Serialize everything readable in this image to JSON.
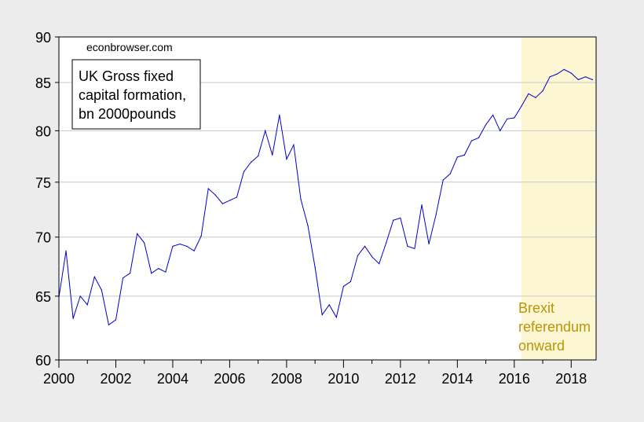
{
  "chart_data": {
    "type": "line",
    "title": "UK Gross fixed capital formation, bn 2000pounds",
    "title_lines": [
      "UK Gross fixed",
      "capital formation,",
      "bn 2000pounds"
    ],
    "watermark": "econbrowser.com",
    "xlabel": "",
    "ylabel": "",
    "scale": "log",
    "ylim": [
      60,
      90
    ],
    "yticks": [
      60,
      65,
      70,
      75,
      80,
      85,
      90
    ],
    "xlim": [
      2000,
      2018.875
    ],
    "xticks": [
      2000,
      2002,
      2004,
      2006,
      2008,
      2010,
      2012,
      2014,
      2016,
      2018
    ],
    "grid": true,
    "shade": {
      "from": 2016.25,
      "to": 2018.875,
      "color": "#fdf6d2"
    },
    "annotation": {
      "lines": [
        "Brexit",
        "referendum",
        "onward"
      ],
      "color": "#b8950a"
    },
    "series": [
      {
        "name": "UK Gross fixed capital formation",
        "color": "#0000cc",
        "x": [
          2000.0,
          2000.25,
          2000.5,
          2000.75,
          2001.0,
          2001.25,
          2001.5,
          2001.75,
          2002.0,
          2002.25,
          2002.5,
          2002.75,
          2003.0,
          2003.25,
          2003.5,
          2003.75,
          2004.0,
          2004.25,
          2004.5,
          2004.75,
          2005.0,
          2005.25,
          2005.5,
          2005.75,
          2006.0,
          2006.25,
          2006.5,
          2006.75,
          2007.0,
          2007.25,
          2007.5,
          2007.75,
          2008.0,
          2008.25,
          2008.5,
          2008.75,
          2009.0,
          2009.25,
          2009.5,
          2009.75,
          2010.0,
          2010.25,
          2010.5,
          2010.75,
          2011.0,
          2011.25,
          2011.5,
          2011.75,
          2012.0,
          2012.25,
          2012.5,
          2012.75,
          2013.0,
          2013.25,
          2013.5,
          2013.75,
          2014.0,
          2014.25,
          2014.5,
          2014.75,
          2015.0,
          2015.25,
          2015.5,
          2015.75,
          2016.0,
          2016.25,
          2016.5,
          2016.75,
          2017.0,
          2017.25,
          2017.5,
          2017.75,
          2018.0,
          2018.25,
          2018.5,
          2018.75
        ],
        "values": [
          64.9,
          68.8,
          63.2,
          65.0,
          64.3,
          66.6,
          65.5,
          62.7,
          63.1,
          66.5,
          66.9,
          70.3,
          69.5,
          66.9,
          67.3,
          67.0,
          69.2,
          69.4,
          69.2,
          68.8,
          70.1,
          74.4,
          73.8,
          73.0,
          73.3,
          73.6,
          76.0,
          76.9,
          77.5,
          80.0,
          77.6,
          81.6,
          77.2,
          78.6,
          73.4,
          71.0,
          67.4,
          63.5,
          64.3,
          63.3,
          65.8,
          66.2,
          68.4,
          69.2,
          68.3,
          67.7,
          69.5,
          71.5,
          71.7,
          69.2,
          69.0,
          72.9,
          69.4,
          72.0,
          75.2,
          75.8,
          77.4,
          77.6,
          79.0,
          79.3,
          80.6,
          81.6,
          80.0,
          81.2,
          81.3,
          82.5,
          83.8,
          83.4,
          84.1,
          85.6,
          85.9,
          86.4,
          86.0,
          85.3,
          85.6,
          85.3
        ]
      }
    ]
  }
}
